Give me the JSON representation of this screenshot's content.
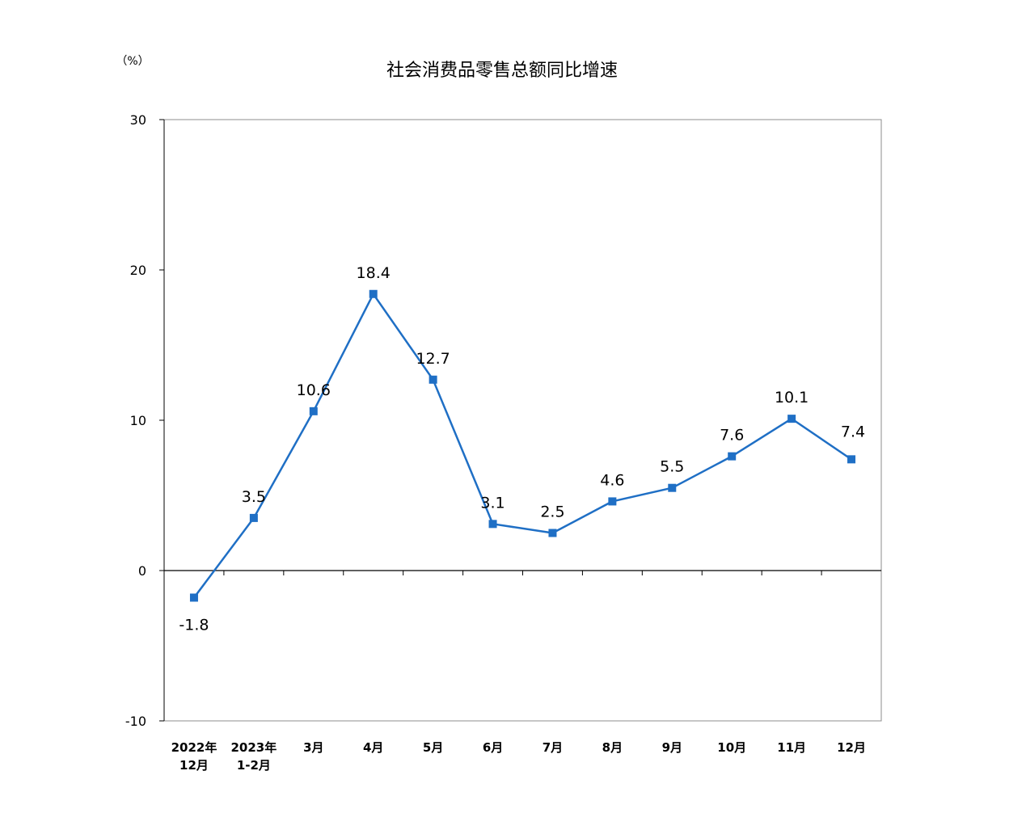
{
  "chart_data": {
    "type": "line",
    "title": "社会消费品零售总额同比增速",
    "unit": "（%）",
    "ylim": [
      -10,
      30
    ],
    "yticks": [
      "30",
      "20",
      "10",
      "0",
      "-10"
    ],
    "categories": [
      [
        "2022年",
        "12月"
      ],
      [
        "2023年",
        "1-2月"
      ],
      [
        "3月"
      ],
      [
        "4月"
      ],
      [
        "5月"
      ],
      [
        "6月"
      ],
      [
        "7月"
      ],
      [
        "8月"
      ],
      [
        "9月"
      ],
      [
        "10月"
      ],
      [
        "11月"
      ],
      [
        "12月"
      ]
    ],
    "values": [
      -1.8,
      3.5,
      10.6,
      18.4,
      12.7,
      3.1,
      2.5,
      4.6,
      5.5,
      7.6,
      10.1,
      7.4
    ],
    "data_labels": [
      "-1.8",
      "3.5",
      "10.6",
      "18.4",
      "12.7",
      "3.1",
      "2.5",
      "4.6",
      "5.5",
      "7.6",
      "10.1",
      "7.4"
    ],
    "line_color": "#1f6fc5",
    "grid": false,
    "legend": "none"
  }
}
